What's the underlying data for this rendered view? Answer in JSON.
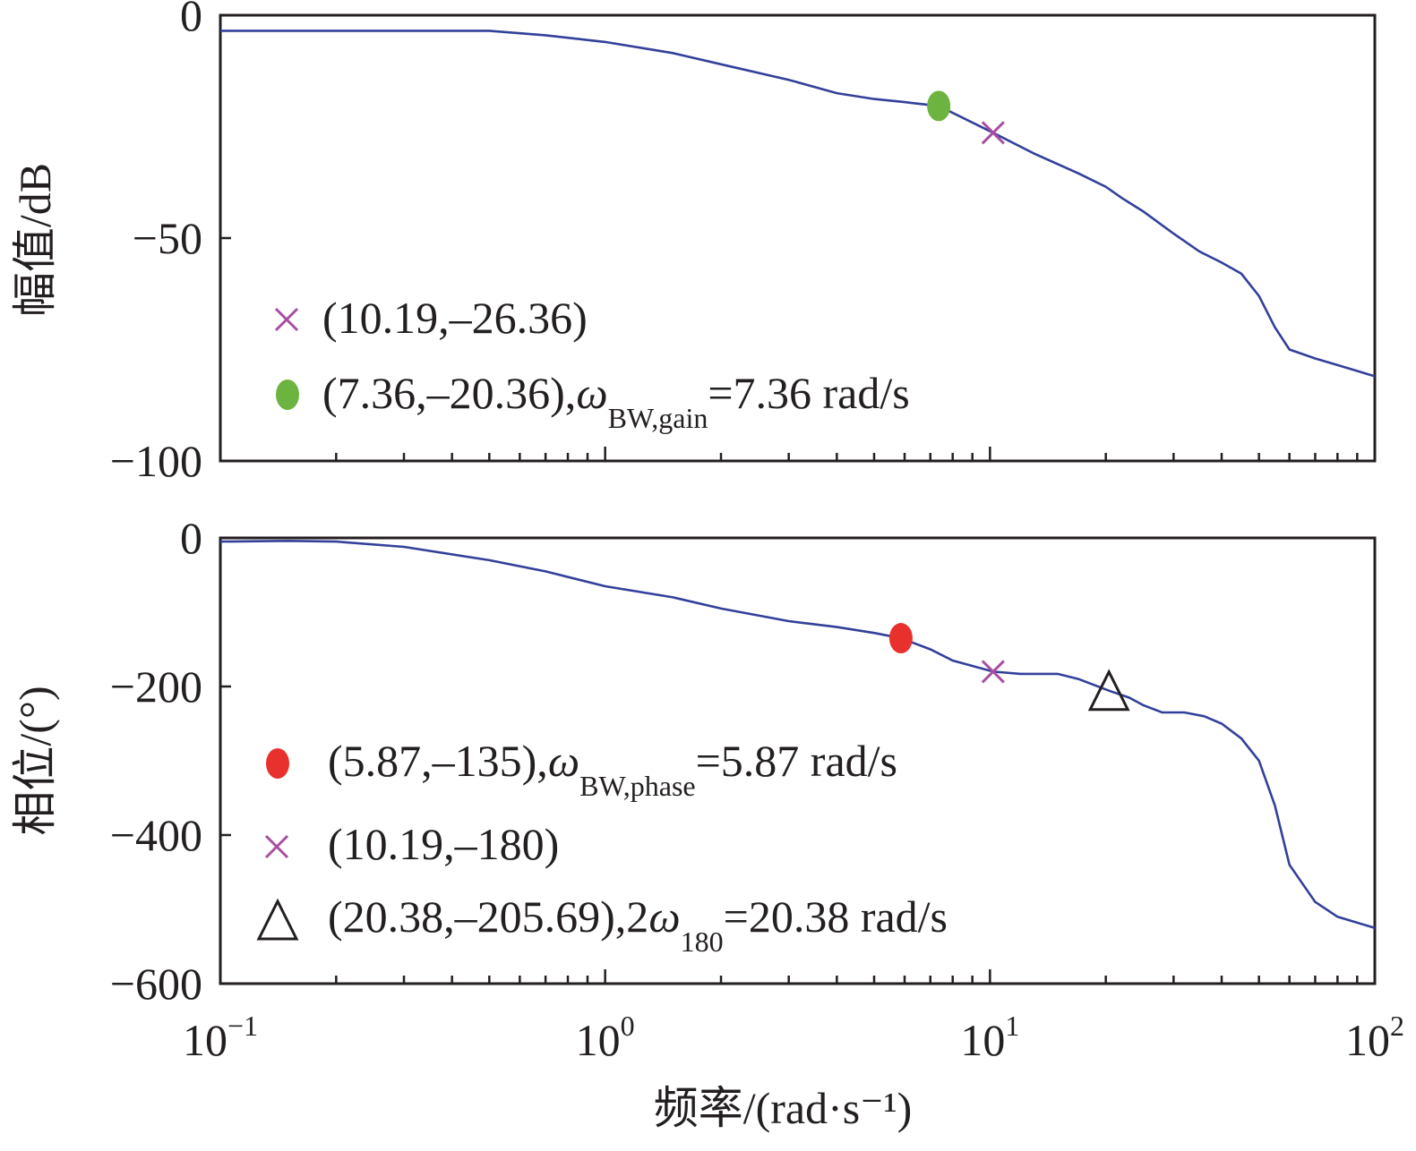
{
  "colors": {
    "curve": "#33409a",
    "cross": "#a84ea2",
    "gain_dot": "#6cb33f",
    "phase_dot": "#e8312d",
    "axis": "#231f20"
  },
  "chart_data": [
    {
      "type": "line",
      "panel": "magnitude",
      "ylabel": "幅值/dB",
      "xscale": "log",
      "xlim": [
        0.1,
        100
      ],
      "ylim": [
        -100,
        0
      ],
      "yticks": [
        {
          "value": 0,
          "label": "0"
        },
        {
          "value": -50,
          "label": "−50"
        },
        {
          "value": -100,
          "label": "−100"
        }
      ],
      "series": [
        {
          "name": "magnitude",
          "x": [
            0.1,
            0.2,
            0.3,
            0.5,
            0.7,
            1.0,
            1.5,
            2.0,
            3.0,
            4.0,
            5.0,
            6.0,
            7.36,
            10.19,
            13.0,
            17.0,
            20.0,
            22.0,
            25.0,
            30.0,
            35.0,
            40.0,
            45.0,
            50.0,
            55.0,
            60.0,
            70.0,
            80.0,
            100.0
          ],
          "y": [
            -3.5,
            -3.5,
            -3.5,
            -3.5,
            -4.5,
            -6.0,
            -8.5,
            -11.0,
            -14.5,
            -17.5,
            -18.8,
            -19.5,
            -20.36,
            -26.36,
            -31.0,
            -35.5,
            -38.5,
            -41.0,
            -44.0,
            -49.0,
            -53.0,
            -55.5,
            -58.0,
            -63.0,
            -70.0,
            -75.0,
            -77.0,
            -78.5,
            -81.0
          ]
        }
      ],
      "markers": [
        {
          "shape": "cross",
          "x": 10.19,
          "y": -26.36
        },
        {
          "shape": "dot",
          "x": 7.36,
          "y": -20.36
        }
      ],
      "legend": [
        {
          "marker": "cross",
          "text": "(10.19,–26.36)"
        },
        {
          "marker": "dot",
          "text": "(7.36,–20.36),",
          "symbol": "ω",
          "subscript": "BW,gain",
          "suffix": "=7.36 rad/s"
        }
      ]
    },
    {
      "type": "line",
      "panel": "phase",
      "ylabel": "相位/(°)",
      "xlabel": "频率/(rad·s⁻¹)",
      "xscale": "log",
      "xlim": [
        0.1,
        100
      ],
      "ylim": [
        -600,
        0
      ],
      "yticks": [
        {
          "value": 0,
          "label": "0"
        },
        {
          "value": -200,
          "label": "−200"
        },
        {
          "value": -400,
          "label": "−400"
        },
        {
          "value": -600,
          "label": "−600"
        }
      ],
      "xticks": [
        {
          "value": 0.1,
          "base": "10",
          "exp": "−1"
        },
        {
          "value": 1,
          "base": "10",
          "exp": "0"
        },
        {
          "value": 10,
          "base": "10",
          "exp": "1"
        },
        {
          "value": 100,
          "base": "10",
          "exp": "2"
        }
      ],
      "series": [
        {
          "name": "phase",
          "x": [
            0.1,
            0.15,
            0.2,
            0.3,
            0.5,
            0.7,
            1.0,
            1.5,
            2.0,
            3.0,
            4.0,
            5.0,
            5.87,
            7.0,
            8.0,
            10.19,
            12.0,
            15.0,
            17.0,
            20.38,
            23.0,
            25.0,
            28.0,
            32.0,
            36.0,
            40.0,
            45.0,
            50.0,
            55.0,
            60.0,
            70.0,
            80.0,
            100.0
          ],
          "y": [
            -5.0,
            -4.0,
            -5.0,
            -12.0,
            -30.0,
            -45.0,
            -65.0,
            -80.0,
            -95.0,
            -112.0,
            -120.0,
            -128.0,
            -135.0,
            -150.0,
            -165.0,
            -180.0,
            -183.0,
            -183.0,
            -190.0,
            -205.69,
            -215.0,
            -225.0,
            -235.0,
            -235.0,
            -240.0,
            -250.0,
            -270.0,
            -300.0,
            -360.0,
            -440.0,
            -490.0,
            -510.0,
            -525.0
          ]
        }
      ],
      "markers": [
        {
          "shape": "dot",
          "x": 5.87,
          "y": -135
        },
        {
          "shape": "cross",
          "x": 10.19,
          "y": -180
        },
        {
          "shape": "triangle",
          "x": 20.38,
          "y": -205.69
        }
      ],
      "legend": [
        {
          "marker": "dot",
          "text": "(5.87,–135),",
          "symbol": "ω",
          "subscript": "BW,phase",
          "suffix": "=5.87 rad/s"
        },
        {
          "marker": "cross",
          "text": "(10.19,–180)"
        },
        {
          "marker": "triangle",
          "text": "(20.38,–205.69),2",
          "symbol": "ω",
          "subscript": "180",
          "suffix": "=20.38 rad/s"
        }
      ]
    }
  ]
}
